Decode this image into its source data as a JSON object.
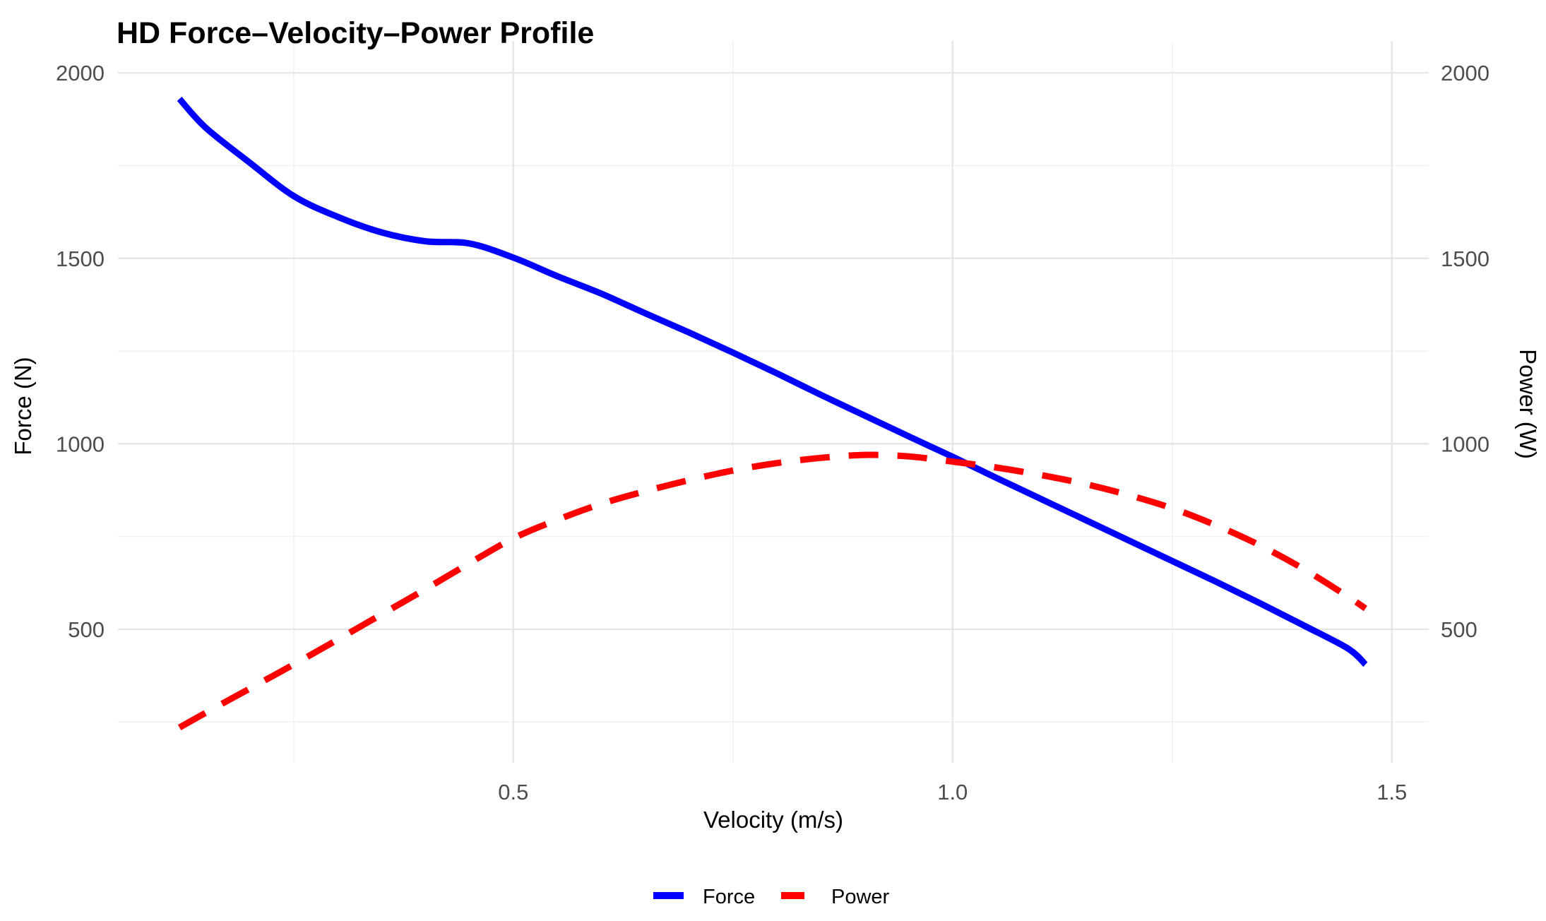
{
  "chart_data": {
    "type": "line",
    "title": "HD Force–Velocity–Power Profile",
    "xlabel": "Velocity (m/s)",
    "ylabel_left": "Force (N)",
    "ylabel_right": "Power (W)",
    "x": [
      0.12,
      0.15,
      0.2,
      0.25,
      0.3,
      0.35,
      0.4,
      0.45,
      0.5,
      0.55,
      0.6,
      0.65,
      0.7,
      0.75,
      0.8,
      0.85,
      0.9,
      0.95,
      1.0,
      1.05,
      1.1,
      1.15,
      1.2,
      1.25,
      1.3,
      1.35,
      1.4,
      1.45,
      1.47
    ],
    "series": [
      {
        "name": "Force",
        "axis": "left",
        "color": "#0000FF",
        "style": "solid",
        "values": [
          1930,
          1852,
          1758,
          1668,
          1612,
          1570,
          1546,
          1540,
          1502,
          1452,
          1405,
          1352,
          1300,
          1246,
          1190,
          1132,
          1076,
          1020,
          965,
          908,
          852,
          796,
          740,
          684,
          628,
          570,
          510,
          448,
          405
        ]
      },
      {
        "name": "Power",
        "axis": "right",
        "color": "#FF0000",
        "style": "dashed",
        "values": [
          235,
          275,
          340,
          405,
          472,
          540,
          608,
          678,
          745,
          795,
          838,
          872,
          902,
          928,
          948,
          962,
          970,
          966,
          952,
          936,
          916,
          892,
          862,
          826,
          780,
          726,
          662,
          588,
          556
        ]
      }
    ],
    "x_axis": {
      "ticks": [
        0.5,
        1.0,
        1.5
      ],
      "tick_labels": [
        "0.5",
        "1.0",
        "1.5"
      ],
      "minor_ticks": [
        0.25,
        0.75,
        1.25
      ],
      "range": [
        0.05,
        1.542
      ]
    },
    "y_axis": {
      "ticks": [
        500,
        1000,
        1500,
        2000
      ],
      "tick_labels": [
        "500",
        "1000",
        "1500",
        "2000"
      ],
      "minor_ticks": [
        250,
        750,
        1250,
        1750
      ],
      "range": [
        140,
        2086
      ]
    },
    "legend": {
      "position": "bottom",
      "items": [
        "Force",
        "Power"
      ]
    },
    "grid": true,
    "background": "#FFFFFF",
    "major_grid_color": "#E4E4E4",
    "minor_grid_color": "#F0F0F0",
    "tick_label_color": "#4D4D4D"
  }
}
